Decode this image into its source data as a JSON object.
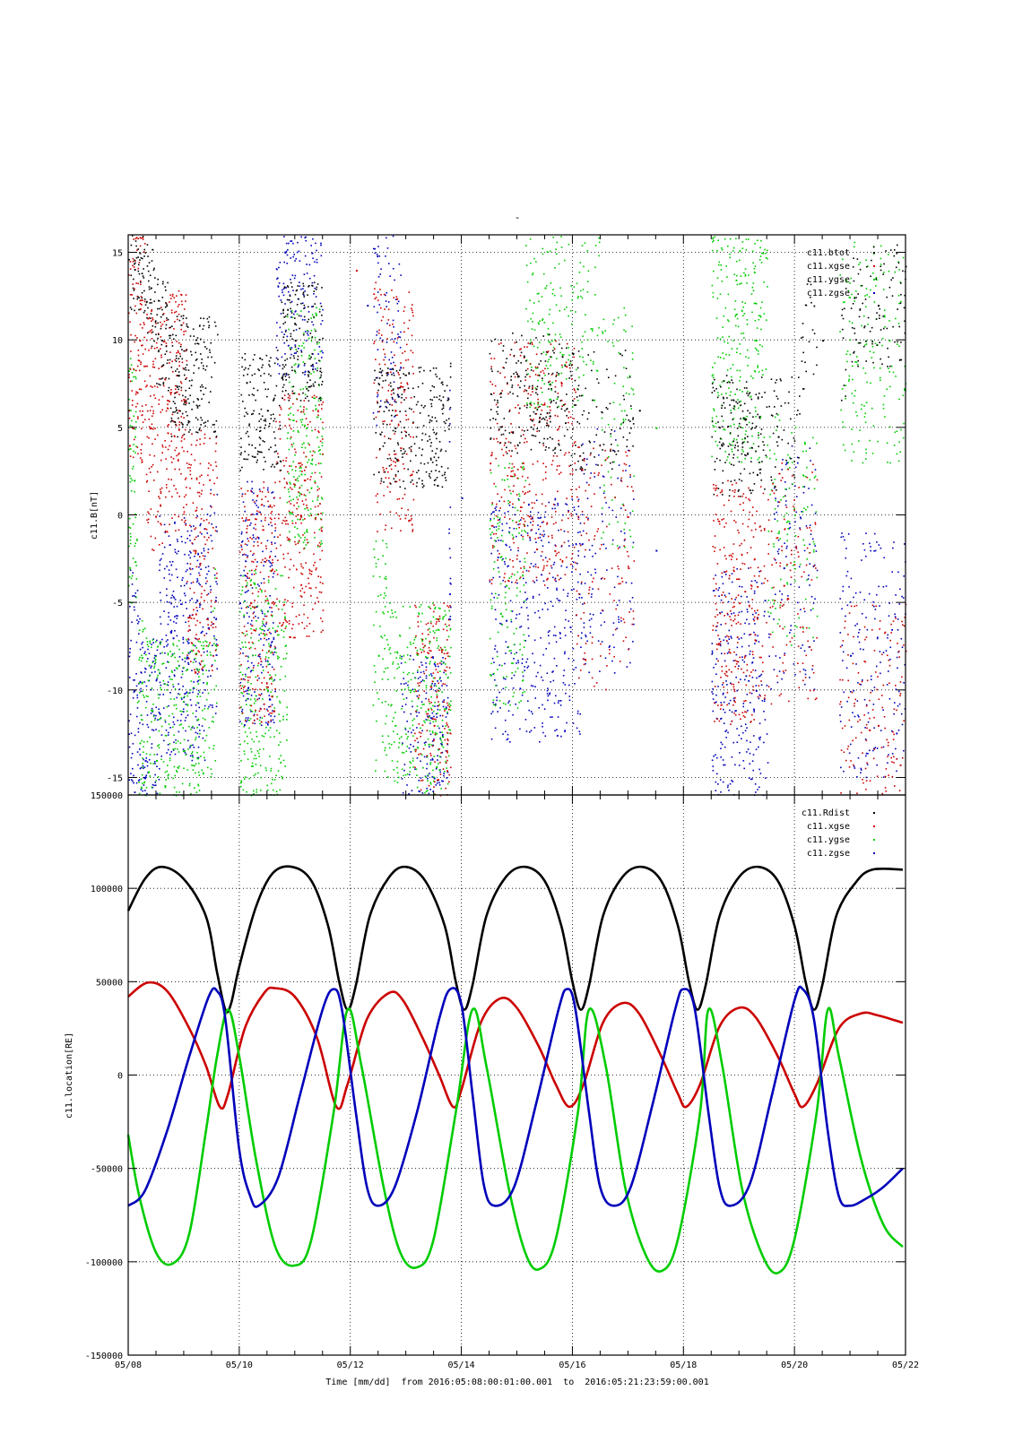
{
  "page_title": "-",
  "xlabel": "Time [mm/dd]  from 2016:05:08:00:01:00.001  to  2016:05:21:23:59:00.001",
  "x_ticks": [
    "05/08",
    "05/10",
    "05/12",
    "05/14",
    "05/16",
    "05/18",
    "05/20",
    "05/22"
  ],
  "chart_data": [
    {
      "type": "scatter",
      "ylabel": "c11.B[nT]",
      "ylim": [
        -16,
        16
      ],
      "xlim": [
        "05/08",
        "05/22"
      ],
      "y_ticks": [
        "15",
        "10",
        "5",
        "0",
        "-5",
        "-10",
        "-15"
      ],
      "grid": true,
      "legend_position": "top-right",
      "series": [
        {
          "name": "c11.btot",
          "color": "#000000"
        },
        {
          "name": "c11.xgse",
          "color": "#cc0000"
        },
        {
          "name": "c11.ygse",
          "color": "#00cc00"
        },
        {
          "name": "c11.zgse",
          "color": "#0000bb"
        }
      ],
      "sample_points": {
        "btot": [
          [
            0.2,
            15
          ],
          [
            0.4,
            13
          ],
          [
            0.6,
            10
          ],
          [
            0.9,
            8
          ],
          [
            2.5,
            6
          ],
          [
            3,
            10
          ],
          [
            4.8,
            5
          ],
          [
            6.7,
            7
          ],
          [
            9.2,
            6
          ],
          [
            11.7,
            4.5
          ],
          [
            12.5,
            10
          ],
          [
            13.5,
            12
          ]
        ],
        "xgse": [
          [
            0.2,
            10
          ],
          [
            0.4,
            5
          ],
          [
            0.9,
            6
          ],
          [
            1.2,
            -2
          ],
          [
            2.2,
            -5
          ],
          [
            3.1,
            0
          ],
          [
            4.1,
            14
          ],
          [
            4.8,
            6
          ],
          [
            5.5,
            -12
          ],
          [
            7.1,
            3
          ],
          [
            9,
            -3
          ],
          [
            11,
            -5
          ],
          [
            11.8,
            -4
          ],
          [
            13.5,
            -12
          ]
        ],
        "ygse": [
          [
            0.1,
            2
          ],
          [
            0.2,
            -13
          ],
          [
            0.5,
            -14
          ],
          [
            2.5,
            -10
          ],
          [
            3.2,
            5
          ],
          [
            4.5,
            -8
          ],
          [
            4.8,
            -12
          ],
          [
            6.8,
            -4
          ],
          [
            7.5,
            13
          ],
          [
            9.5,
            5
          ],
          [
            11.3,
            10
          ],
          [
            11.7,
            -1
          ],
          [
            13.7,
            10
          ]
        ],
        "zgse": [
          [
            0.1,
            -10
          ],
          [
            0.3,
            -14
          ],
          [
            0.8,
            -7
          ],
          [
            2,
            -5
          ],
          [
            3.3,
            15
          ],
          [
            4.3,
            12
          ],
          [
            5.5,
            -15
          ],
          [
            6,
            1
          ],
          [
            6.8,
            -6
          ],
          [
            9.5,
            -2
          ],
          [
            11.3,
            -10
          ],
          [
            11.8,
            -3
          ],
          [
            13,
            -8
          ]
        ]
      }
    },
    {
      "type": "line",
      "ylabel": "c11.location[RE]",
      "ylim": [
        -150000,
        150000
      ],
      "xlim": [
        "05/08",
        "05/22"
      ],
      "y_ticks": [
        "150000",
        "100000",
        "50000",
        "0",
        "-50000",
        "-100000",
        "-150000"
      ],
      "grid": true,
      "legend_position": "top-right",
      "series": [
        {
          "name": "c11.Rdist",
          "color": "#000000",
          "values": [
            [
              0.0,
              88000
            ],
            [
              0.3,
              105000
            ],
            [
              0.6,
              111500
            ],
            [
              1.0,
              105000
            ],
            [
              1.4,
              85000
            ],
            [
              1.6,
              55000
            ],
            [
              1.75,
              35000
            ],
            [
              1.85,
              38000
            ],
            [
              2.0,
              58000
            ],
            [
              2.3,
              90000
            ],
            [
              2.6,
              108000
            ],
            [
              2.95,
              111500
            ],
            [
              3.3,
              104000
            ],
            [
              3.6,
              80000
            ],
            [
              3.8,
              50000
            ],
            [
              3.95,
              35000
            ],
            [
              4.1,
              48000
            ],
            [
              4.35,
              85000
            ],
            [
              4.7,
              106000
            ],
            [
              5.0,
              111500
            ],
            [
              5.35,
              104000
            ],
            [
              5.7,
              80000
            ],
            [
              5.9,
              50000
            ],
            [
              6.05,
              35000
            ],
            [
              6.2,
              48000
            ],
            [
              6.45,
              85000
            ],
            [
              6.8,
              106000
            ],
            [
              7.15,
              111500
            ],
            [
              7.5,
              104000
            ],
            [
              7.8,
              80000
            ],
            [
              8.0,
              50000
            ],
            [
              8.15,
              35000
            ],
            [
              8.3,
              48000
            ],
            [
              8.55,
              85000
            ],
            [
              8.9,
              106000
            ],
            [
              9.25,
              111500
            ],
            [
              9.6,
              104000
            ],
            [
              9.9,
              80000
            ],
            [
              10.1,
              50000
            ],
            [
              10.25,
              35000
            ],
            [
              10.4,
              48000
            ],
            [
              10.65,
              85000
            ],
            [
              11.0,
              106000
            ],
            [
              11.35,
              111500
            ],
            [
              11.7,
              104000
            ],
            [
              12.0,
              80000
            ],
            [
              12.2,
              50000
            ],
            [
              12.35,
              35000
            ],
            [
              12.5,
              48000
            ],
            [
              12.75,
              85000
            ],
            [
              13.1,
              103000
            ],
            [
              13.4,
              110000
            ],
            [
              13.95,
              110000
            ]
          ]
        },
        {
          "name": "c11.xgse",
          "color": "#cc0000",
          "values": [
            [
              0.0,
              42000
            ],
            [
              0.35,
              49500
            ],
            [
              0.7,
              45000
            ],
            [
              1.1,
              25000
            ],
            [
              1.4,
              5000
            ],
            [
              1.65,
              -17000
            ],
            [
              1.8,
              -10000
            ],
            [
              2.1,
              25000
            ],
            [
              2.45,
              44000
            ],
            [
              2.65,
              46500
            ],
            [
              3.0,
              42000
            ],
            [
              3.4,
              20000
            ],
            [
              3.75,
              -17000
            ],
            [
              3.95,
              -5000
            ],
            [
              4.3,
              30000
            ],
            [
              4.7,
              44000
            ],
            [
              4.95,
              40000
            ],
            [
              5.3,
              20000
            ],
            [
              5.6,
              0
            ],
            [
              5.85,
              -17000
            ],
            [
              6.0,
              -8000
            ],
            [
              6.35,
              28000
            ],
            [
              6.7,
              41000
            ],
            [
              7.0,
              36000
            ],
            [
              7.4,
              15000
            ],
            [
              7.7,
              -5000
            ],
            [
              7.95,
              -17000
            ],
            [
              8.2,
              -5000
            ],
            [
              8.55,
              28000
            ],
            [
              8.9,
              38500
            ],
            [
              9.2,
              33000
            ],
            [
              9.6,
              10000
            ],
            [
              9.9,
              -10000
            ],
            [
              10.05,
              -17000
            ],
            [
              10.3,
              -5000
            ],
            [
              10.65,
              26000
            ],
            [
              11.0,
              36000
            ],
            [
              11.3,
              31000
            ],
            [
              11.7,
              10000
            ],
            [
              12.0,
              -10000
            ],
            [
              12.15,
              -17000
            ],
            [
              12.4,
              -5000
            ],
            [
              12.8,
              25000
            ],
            [
              13.2,
              33000
            ],
            [
              13.5,
              32000
            ],
            [
              13.95,
              28000
            ]
          ]
        },
        {
          "name": "c11.ygse",
          "color": "#00cc00",
          "values": [
            [
              0.0,
              -32000
            ],
            [
              0.2,
              -65000
            ],
            [
              0.5,
              -95000
            ],
            [
              0.8,
              -101000
            ],
            [
              1.1,
              -85000
            ],
            [
              1.4,
              -30000
            ],
            [
              1.6,
              10000
            ],
            [
              1.8,
              35000
            ],
            [
              2.0,
              10000
            ],
            [
              2.3,
              -45000
            ],
            [
              2.65,
              -92000
            ],
            [
              3.0,
              -102000
            ],
            [
              3.3,
              -88000
            ],
            [
              3.7,
              -20000
            ],
            [
              3.95,
              35000
            ],
            [
              4.2,
              5000
            ],
            [
              4.6,
              -60000
            ],
            [
              4.9,
              -95000
            ],
            [
              5.2,
              -103000
            ],
            [
              5.5,
              -88000
            ],
            [
              5.9,
              -20000
            ],
            [
              6.2,
              35000
            ],
            [
              6.45,
              5000
            ],
            [
              6.85,
              -60000
            ],
            [
              7.15,
              -95000
            ],
            [
              7.4,
              -104000
            ],
            [
              7.7,
              -88000
            ],
            [
              8.1,
              -20000
            ],
            [
              8.3,
              35000
            ],
            [
              8.6,
              5000
            ],
            [
              8.95,
              -60000
            ],
            [
              9.3,
              -95000
            ],
            [
              9.6,
              -105000
            ],
            [
              9.9,
              -88000
            ],
            [
              10.3,
              -20000
            ],
            [
              10.45,
              35000
            ],
            [
              10.7,
              5000
            ],
            [
              11.05,
              -60000
            ],
            [
              11.4,
              -95000
            ],
            [
              11.7,
              -106000
            ],
            [
              12.0,
              -88000
            ],
            [
              12.4,
              -20000
            ],
            [
              12.6,
              35000
            ],
            [
              12.8,
              10000
            ],
            [
              13.2,
              -45000
            ],
            [
              13.6,
              -80000
            ],
            [
              13.95,
              -92000
            ]
          ]
        },
        {
          "name": "c11.zgse",
          "color": "#0000bb",
          "values": [
            [
              0.0,
              -70000
            ],
            [
              0.3,
              -62000
            ],
            [
              0.7,
              -30000
            ],
            [
              1.1,
              10000
            ],
            [
              1.45,
              42000
            ],
            [
              1.6,
              45000
            ],
            [
              1.75,
              30000
            ],
            [
              2.0,
              -40000
            ],
            [
              2.2,
              -65000
            ],
            [
              2.35,
              -70000
            ],
            [
              2.7,
              -55000
            ],
            [
              3.1,
              -10000
            ],
            [
              3.5,
              35000
            ],
            [
              3.7,
              46000
            ],
            [
              3.85,
              35000
            ],
            [
              4.1,
              -20000
            ],
            [
              4.3,
              -60000
            ],
            [
              4.5,
              -70000
            ],
            [
              4.8,
              -60000
            ],
            [
              5.2,
              -20000
            ],
            [
              5.6,
              30000
            ],
            [
              5.8,
              46000
            ],
            [
              6.0,
              38000
            ],
            [
              6.2,
              -10000
            ],
            [
              6.4,
              -58000
            ],
            [
              6.6,
              -70000
            ],
            [
              6.95,
              -60000
            ],
            [
              7.35,
              -15000
            ],
            [
              7.75,
              35000
            ],
            [
              7.9,
              46000
            ],
            [
              8.05,
              36000
            ],
            [
              8.3,
              -20000
            ],
            [
              8.5,
              -60000
            ],
            [
              8.75,
              -70000
            ],
            [
              9.05,
              -60000
            ],
            [
              9.45,
              -15000
            ],
            [
              9.85,
              35000
            ],
            [
              10.0,
              46000
            ],
            [
              10.2,
              36000
            ],
            [
              10.45,
              -20000
            ],
            [
              10.65,
              -60000
            ],
            [
              10.85,
              -70000
            ],
            [
              11.2,
              -58000
            ],
            [
              11.6,
              -10000
            ],
            [
              12.0,
              40000
            ],
            [
              12.15,
              46000
            ],
            [
              12.35,
              30000
            ],
            [
              12.6,
              -30000
            ],
            [
              12.8,
              -65000
            ],
            [
              13.0,
              -70000
            ],
            [
              13.3,
              -66000
            ],
            [
              13.6,
              -60000
            ],
            [
              13.95,
              -50000
            ]
          ]
        }
      ]
    }
  ]
}
